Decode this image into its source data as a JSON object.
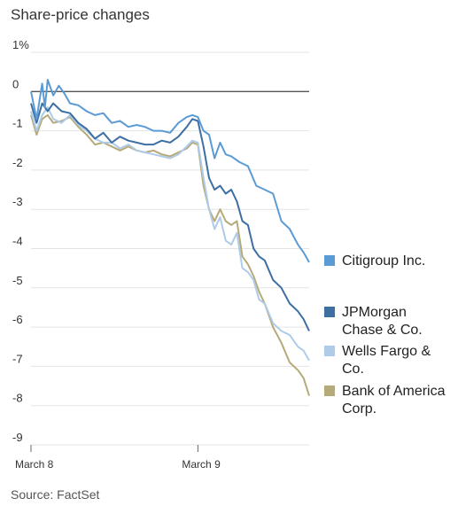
{
  "chart_data": {
    "type": "line",
    "title": "Share-price changes",
    "source": "Source: FactSet",
    "y_ticks": [
      "1%",
      "0",
      "-1",
      "-2",
      "-3",
      "-4",
      "-5",
      "-6",
      "-7",
      "-8",
      "-9"
    ],
    "y_tick_values": [
      1,
      0,
      -1,
      -2,
      -3,
      -4,
      -5,
      -6,
      -7,
      -8,
      -9
    ],
    "ylim": [
      -9,
      1
    ],
    "x_ticks": [
      "March 8",
      "March 9"
    ],
    "x_tick_values": [
      0,
      0.6
    ],
    "xlim": [
      0,
      1
    ],
    "grid": true,
    "legend_position": "right",
    "series": [
      {
        "name": "Citigroup Inc.",
        "color": "#5b9bd5",
        "x": [
          0,
          0.02,
          0.04,
          0.05,
          0.06,
          0.08,
          0.1,
          0.12,
          0.14,
          0.17,
          0.2,
          0.23,
          0.26,
          0.29,
          0.32,
          0.35,
          0.38,
          0.41,
          0.44,
          0.47,
          0.5,
          0.53,
          0.56,
          0.58,
          0.6,
          0.62,
          0.64,
          0.66,
          0.68,
          0.7,
          0.72,
          0.75,
          0.78,
          0.81,
          0.84,
          0.87,
          0.9,
          0.93,
          0.96,
          0.98,
          1.0
        ],
        "values": [
          0.0,
          -0.7,
          0.2,
          -0.4,
          0.3,
          -0.1,
          0.15,
          -0.05,
          -0.3,
          -0.35,
          -0.5,
          -0.6,
          -0.55,
          -0.8,
          -0.75,
          -0.9,
          -0.85,
          -0.9,
          -1.0,
          -1.0,
          -1.05,
          -0.8,
          -0.65,
          -0.6,
          -0.65,
          -1.0,
          -1.1,
          -1.7,
          -1.3,
          -1.6,
          -1.65,
          -1.8,
          -1.9,
          -2.4,
          -2.5,
          -2.6,
          -3.3,
          -3.5,
          -3.9,
          -4.1,
          -4.35
        ]
      },
      {
        "name": "JPMorgan Chase & Co.",
        "color": "#3e6fa3",
        "x": [
          0,
          0.02,
          0.04,
          0.06,
          0.08,
          0.11,
          0.14,
          0.17,
          0.2,
          0.23,
          0.26,
          0.29,
          0.32,
          0.35,
          0.38,
          0.41,
          0.44,
          0.47,
          0.5,
          0.53,
          0.56,
          0.58,
          0.6,
          0.62,
          0.64,
          0.66,
          0.68,
          0.7,
          0.72,
          0.74,
          0.76,
          0.78,
          0.8,
          0.82,
          0.84,
          0.87,
          0.9,
          0.93,
          0.96,
          0.98,
          1.0
        ],
        "values": [
          -0.3,
          -0.8,
          -0.3,
          -0.5,
          -0.3,
          -0.5,
          -0.55,
          -0.8,
          -0.95,
          -1.2,
          -1.05,
          -1.3,
          -1.15,
          -1.25,
          -1.3,
          -1.35,
          -1.35,
          -1.25,
          -1.3,
          -1.15,
          -0.9,
          -0.7,
          -0.75,
          -1.4,
          -2.2,
          -2.5,
          -2.4,
          -2.6,
          -2.5,
          -2.8,
          -3.3,
          -3.4,
          -4.0,
          -4.2,
          -4.3,
          -4.8,
          -5.0,
          -5.4,
          -5.6,
          -5.8,
          -6.1
        ]
      },
      {
        "name": "Wells Fargo & Co.",
        "color": "#aecbea",
        "x": [
          0,
          0.02,
          0.04,
          0.06,
          0.08,
          0.11,
          0.14,
          0.17,
          0.2,
          0.23,
          0.26,
          0.29,
          0.32,
          0.35,
          0.38,
          0.41,
          0.44,
          0.47,
          0.5,
          0.53,
          0.56,
          0.58,
          0.6,
          0.62,
          0.64,
          0.66,
          0.68,
          0.7,
          0.72,
          0.74,
          0.76,
          0.78,
          0.8,
          0.82,
          0.84,
          0.87,
          0.9,
          0.93,
          0.96,
          0.98,
          1.0
        ],
        "values": [
          -0.5,
          -1.0,
          -0.6,
          -0.4,
          -0.7,
          -0.8,
          -0.6,
          -0.85,
          -1.0,
          -1.2,
          -1.3,
          -1.3,
          -1.45,
          -1.35,
          -1.5,
          -1.55,
          -1.6,
          -1.65,
          -1.7,
          -1.6,
          -1.4,
          -1.25,
          -1.3,
          -2.2,
          -3.0,
          -3.5,
          -3.2,
          -3.8,
          -3.9,
          -3.6,
          -4.5,
          -4.6,
          -4.8,
          -5.3,
          -5.4,
          -5.9,
          -6.1,
          -6.2,
          -6.5,
          -6.6,
          -6.85
        ]
      },
      {
        "name": "Bank of America Corp.",
        "color": "#b5aa78",
        "x": [
          0,
          0.02,
          0.04,
          0.06,
          0.08,
          0.11,
          0.14,
          0.17,
          0.2,
          0.23,
          0.26,
          0.29,
          0.32,
          0.35,
          0.38,
          0.41,
          0.44,
          0.47,
          0.5,
          0.53,
          0.56,
          0.58,
          0.6,
          0.62,
          0.64,
          0.66,
          0.68,
          0.7,
          0.72,
          0.74,
          0.76,
          0.78,
          0.8,
          0.82,
          0.84,
          0.87,
          0.9,
          0.93,
          0.96,
          0.98,
          1.0
        ],
        "values": [
          -0.6,
          -1.1,
          -0.7,
          -0.6,
          -0.8,
          -0.75,
          -0.65,
          -0.9,
          -1.1,
          -1.35,
          -1.3,
          -1.4,
          -1.5,
          -1.4,
          -1.5,
          -1.55,
          -1.5,
          -1.6,
          -1.65,
          -1.55,
          -1.45,
          -1.3,
          -1.35,
          -2.4,
          -3.0,
          -3.3,
          -3.0,
          -3.3,
          -3.4,
          -3.3,
          -4.2,
          -4.4,
          -4.7,
          -5.1,
          -5.4,
          -6.0,
          -6.4,
          -6.9,
          -7.1,
          -7.3,
          -7.75
        ]
      }
    ]
  }
}
